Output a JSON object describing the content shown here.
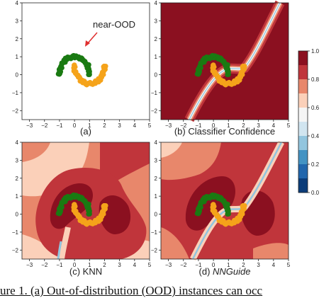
{
  "figure_caption": "ure 1.    (a) Out-of-distribution (OOD) instances can occ",
  "colorbar": {
    "ticks": [
      "1.0",
      "0.8",
      "0.6",
      "0.4",
      "0.2",
      "0.0"
    ],
    "colors": [
      "#8b1020",
      "#c0353b",
      "#e8876b",
      "#fbd0b9",
      "#f5f5f5",
      "#d1e5f0",
      "#92c5de",
      "#4393c3",
      "#2166ac",
      "#0b3c79"
    ]
  },
  "colors": {
    "in_dist_a": "#1a7a12",
    "in_dist_b": "#f5a31a",
    "dark_red": "#8b1020",
    "red": "#c0353b",
    "salmon": "#e8876b",
    "peach": "#fbd0b9",
    "blue": "#4393c3"
  },
  "panels": [
    {
      "id": "a",
      "caption": "(a)",
      "annotation": "near-OOD",
      "x_ticks": [
        "−3",
        "−2",
        "−1",
        "0",
        "1",
        "2",
        "3",
        "4",
        "5"
      ],
      "y_ticks": [
        "4",
        "3",
        "2",
        "1",
        "0",
        "−1",
        "−2"
      ]
    },
    {
      "id": "b",
      "caption": "(b) Classifier Confidence",
      "x_ticks": [
        "−3",
        "−2",
        "−1",
        "0",
        "1",
        "2",
        "3",
        "4",
        "5"
      ],
      "y_ticks": [
        "4",
        "3",
        "2",
        "1",
        "0",
        "−1",
        "−2"
      ]
    },
    {
      "id": "c",
      "caption": "(c) KNN",
      "x_ticks": [
        "−3",
        "−2",
        "−1",
        "0",
        "1",
        "2",
        "3",
        "4",
        "5"
      ],
      "y_ticks": [
        "4",
        "3",
        "2",
        "1",
        "0",
        "−1",
        "−2"
      ]
    },
    {
      "id": "d",
      "caption_prefix": "(d) ",
      "caption_italic": "NNGuide",
      "x_ticks": [
        "−3",
        "−2",
        "−1",
        "0",
        "1",
        "2",
        "3",
        "4",
        "5"
      ],
      "y_ticks": [
        "4",
        "3",
        "2",
        "1",
        "0",
        "−1",
        "−2"
      ]
    }
  ]
}
